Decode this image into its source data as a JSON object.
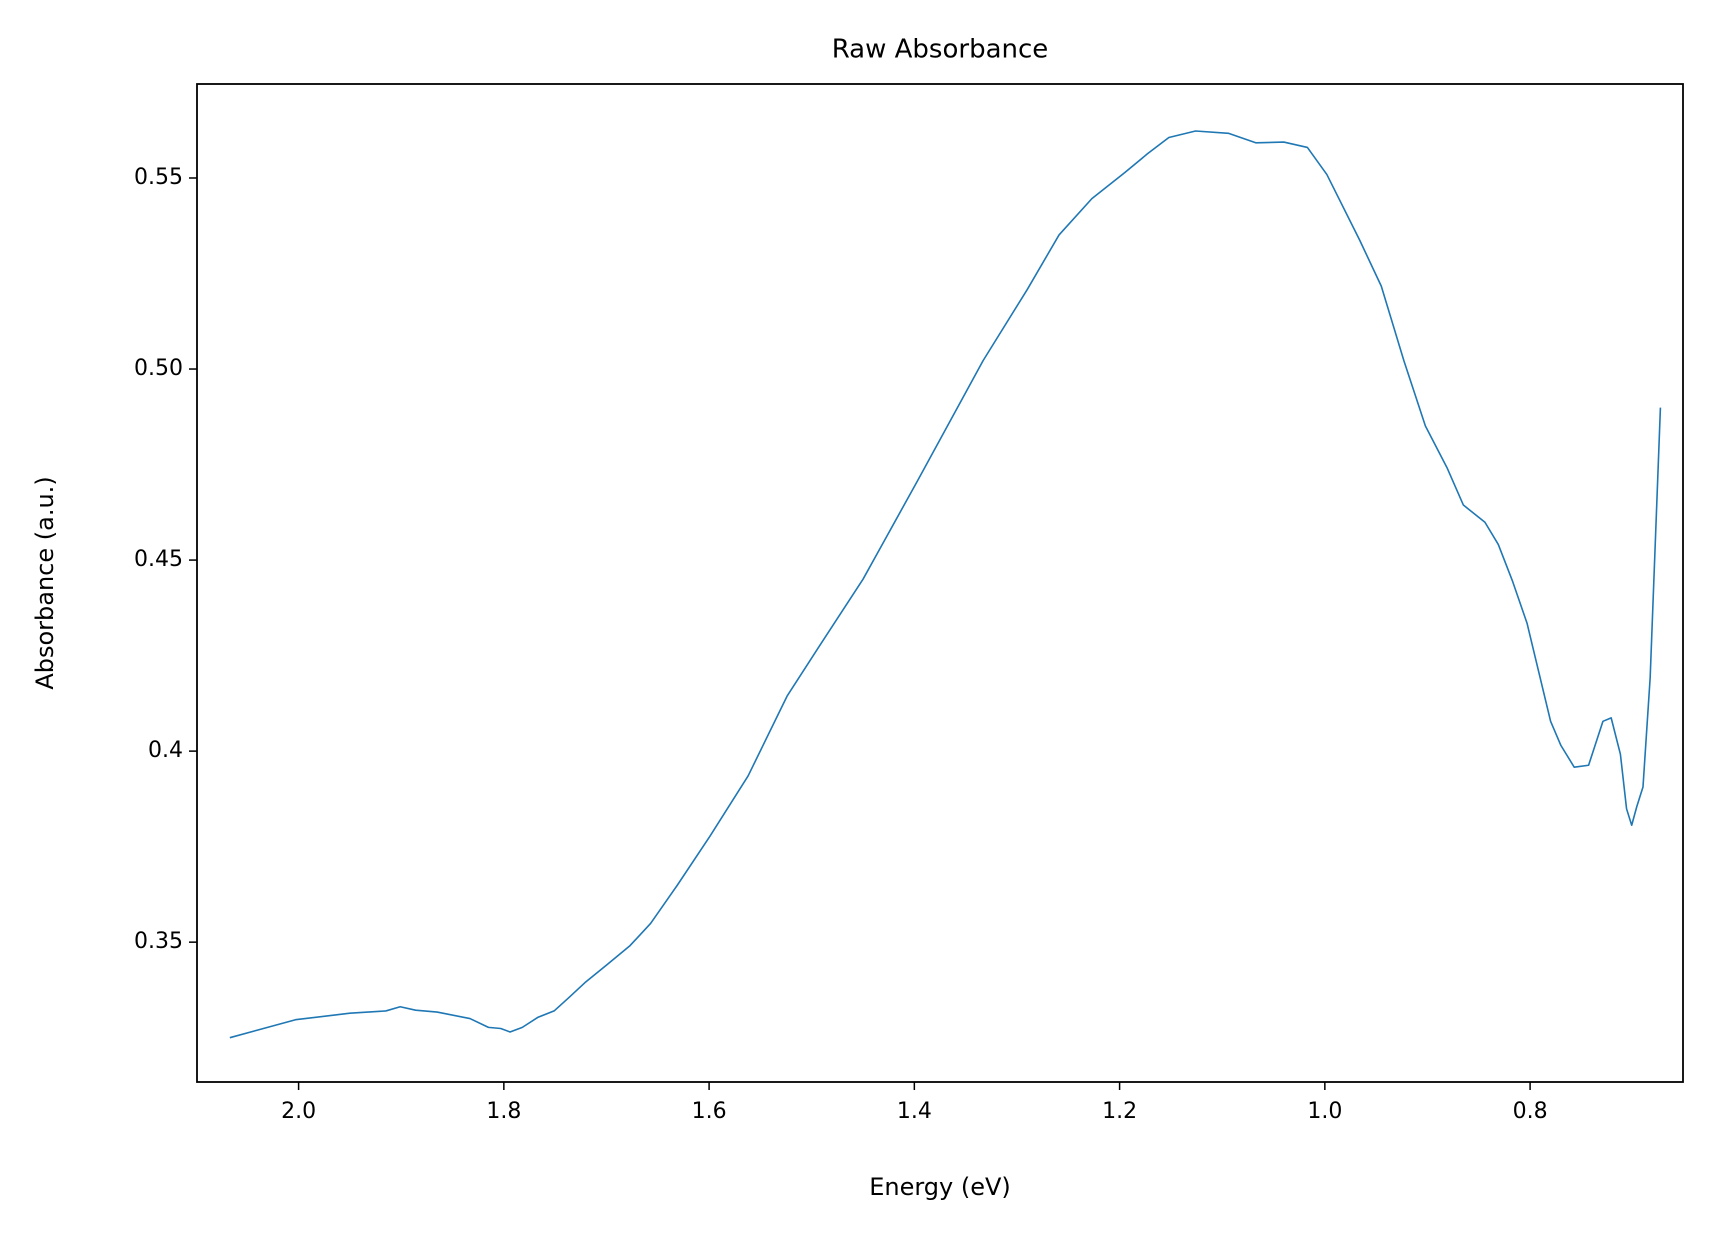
{
  "chart_data": {
    "type": "line",
    "title": "Raw Absorbance",
    "x_label": "Energy (eV)",
    "y_label": "Absorbance (a.u.)",
    "x": [
      2.067,
      2.003,
      1.95,
      1.915,
      1.901,
      1.886,
      1.865,
      1.833,
      1.815,
      1.803,
      1.794,
      1.782,
      1.767,
      1.751,
      1.737,
      1.721,
      1.7,
      1.677,
      1.657,
      1.631,
      1.599,
      1.562,
      1.524,
      1.493,
      1.45,
      1.397,
      1.333,
      1.29,
      1.259,
      1.227,
      1.195,
      1.173,
      1.152,
      1.126,
      1.094,
      1.067,
      1.04,
      1.017,
      0.998,
      0.966,
      0.945,
      0.923,
      0.902,
      0.881,
      0.865,
      0.844,
      0.831,
      0.817,
      0.803,
      0.78,
      0.77,
      0.757,
      0.743,
      0.729,
      0.721,
      0.712,
      0.706,
      0.701,
      0.696,
      0.69,
      0.683,
      0.673
    ],
    "series": [
      {
        "name": "Absorbance",
        "color": "#1f77b4",
        "values": [
          0.325,
          0.3297,
          0.3314,
          0.332,
          0.3331,
          0.3322,
          0.3317,
          0.33,
          0.3277,
          0.3274,
          0.3265,
          0.3277,
          0.3303,
          0.332,
          0.3354,
          0.3394,
          0.344,
          0.3491,
          0.3549,
          0.3649,
          0.3778,
          0.3935,
          0.4144,
          0.4273,
          0.445,
          0.4707,
          0.5022,
          0.5208,
          0.5351,
          0.5446,
          0.5514,
          0.5563,
          0.5606,
          0.5623,
          0.5617,
          0.5592,
          0.5594,
          0.558,
          0.5509,
          0.5337,
          0.5217,
          0.5022,
          0.4851,
          0.4742,
          0.4644,
          0.4599,
          0.4541,
          0.4444,
          0.4335,
          0.4078,
          0.4015,
          0.3958,
          0.3963,
          0.4078,
          0.4087,
          0.3992,
          0.3849,
          0.3806,
          0.3855,
          0.3906,
          0.4192,
          0.4899
        ]
      }
    ],
    "xlim": [
      2.099,
      0.651
    ],
    "xticks": [
      {
        "value": 2,
        "label": "2.0"
      },
      1.8,
      1.6,
      1.4,
      1.2,
      {
        "value": 1,
        "label": "1.0"
      },
      0.8
    ],
    "ylim": [
      0.3134,
      0.5746
    ],
    "yticks": [
      0.35,
      0.4,
      0.45,
      {
        "value": 0.5,
        "label": "0.50"
      },
      0.55
    ],
    "grid": false
  }
}
